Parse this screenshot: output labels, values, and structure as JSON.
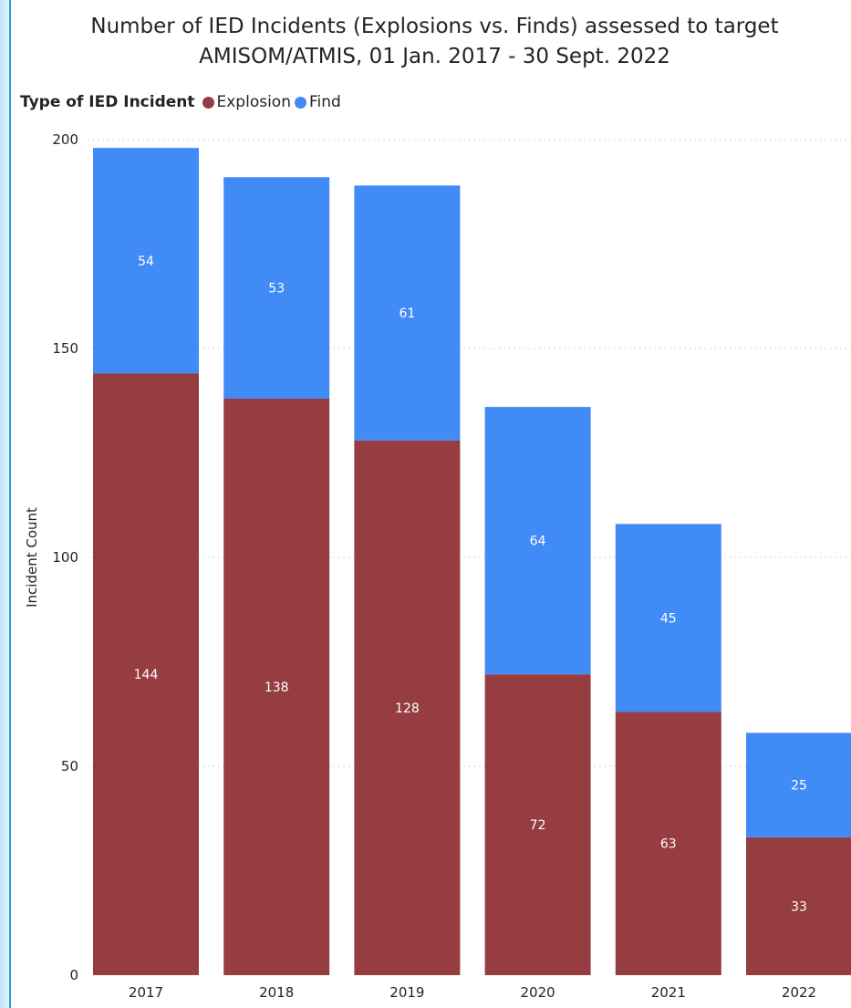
{
  "chart_data": {
    "type": "bar",
    "stacked": true,
    "title_line1": "Number of IED Incidents (Explosions vs. Finds) assessed to target",
    "title_line2": "AMISOM/ATMIS, 01 Jan. 2017 - 30 Sept. 2022",
    "legend_title": "Type of IED Incident",
    "legend_placement": "top-left",
    "categories": [
      "2017",
      "2018",
      "2019",
      "2020",
      "2021",
      "2022"
    ],
    "series": [
      {
        "name": "Explosion",
        "color": "#953D40",
        "values": [
          144,
          138,
          128,
          72,
          63,
          33
        ]
      },
      {
        "name": "Find",
        "color": "#418BF6",
        "values": [
          54,
          53,
          61,
          64,
          45,
          25
        ]
      }
    ],
    "ylabel": "Incident Count",
    "xlabel": "",
    "ylim": [
      0,
      200
    ],
    "yticks": [
      0,
      50,
      100,
      150,
      200
    ],
    "grid": true
  }
}
